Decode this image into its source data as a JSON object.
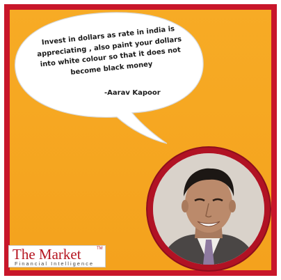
{
  "colors": {
    "frame": "#c8162a",
    "background": "#f5a623",
    "bubble": "#ffffff",
    "logo_red": "#b5141f"
  },
  "quote": {
    "lines": [
      "Invest in dollars as rate in india is",
      "appreciating , also paint your dollars",
      "into white colour so that it does not",
      "become black money"
    ],
    "author": "-Aarav Kapoor"
  },
  "logo": {
    "title": "The Market",
    "trademark": "TM",
    "subtitle": "Financial Intelligence"
  }
}
